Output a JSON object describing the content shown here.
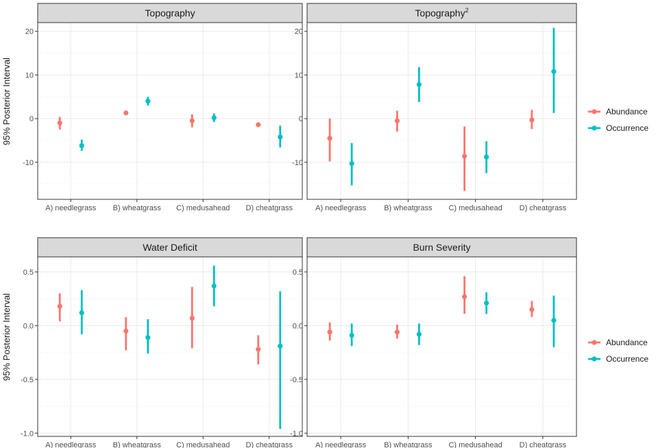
{
  "colors": {
    "abundance": "#f8766d",
    "occurrence": "#00bfc4"
  },
  "legend": {
    "items": [
      "Abundance",
      "Occurrence"
    ]
  },
  "chart_data": [
    {
      "type": "pointrange",
      "title": "Topography",
      "title_sup": "",
      "ylabel": "95% Posterior Interval",
      "ylim": [
        -18.5,
        22
      ],
      "yticks": [
        -10,
        0,
        10,
        20
      ],
      "ytick_labels": [
        "-10",
        "0",
        "10",
        "20"
      ],
      "categories": [
        "A) needlegrass",
        "B) wheatgrass",
        "C) medusahead",
        "D) cheatgrass"
      ],
      "series": [
        {
          "name": "Abundance",
          "mid": [
            -1.0,
            1.3,
            -0.5,
            -1.4
          ],
          "low": [
            -2.5,
            0.8,
            -2.0,
            -1.6
          ],
          "high": [
            0.4,
            1.8,
            1.0,
            -1.2
          ]
        },
        {
          "name": "Occurrence",
          "mid": [
            -6.2,
            4.0,
            0.2,
            -4.2
          ],
          "low": [
            -7.4,
            3.0,
            -0.8,
            -6.6
          ],
          "high": [
            -4.8,
            5.0,
            1.2,
            -1.6
          ]
        }
      ]
    },
    {
      "type": "pointrange",
      "title": "Topography",
      "title_sup": "2",
      "ylabel": "",
      "ylim": [
        -18.5,
        22
      ],
      "yticks": [
        -10,
        0,
        10,
        20
      ],
      "ytick_labels": [
        "-10",
        "0",
        "10",
        "20"
      ],
      "categories": [
        "A) needlegrass",
        "B) wheatgrass",
        "C) medusahead",
        "D) cheatgrass"
      ],
      "series": [
        {
          "name": "Abundance",
          "mid": [
            -4.5,
            -0.5,
            -8.6,
            -0.3
          ],
          "low": [
            -9.8,
            -3.0,
            -16.6,
            -2.4
          ],
          "high": [
            0.0,
            1.8,
            -1.8,
            2.0
          ]
        },
        {
          "name": "Occurrence",
          "mid": [
            -10.3,
            7.8,
            -8.8,
            10.8
          ],
          "low": [
            -15.3,
            3.8,
            -12.5,
            1.3
          ],
          "high": [
            -5.6,
            11.8,
            -5.2,
            20.8
          ]
        }
      ]
    },
    {
      "type": "pointrange",
      "title": "Water Deficit",
      "title_sup": "",
      "ylabel": "95% Posterior Interval",
      "ylim": [
        -1.03,
        0.64
      ],
      "yticks": [
        -1.0,
        -0.5,
        0.0,
        0.5
      ],
      "ytick_labels": [
        "-1.0",
        "-0.5",
        "0.0",
        "0.5"
      ],
      "categories": [
        "A) needlegrass",
        "B) wheatgrass",
        "C) medusahead",
        "D) cheatgrass"
      ],
      "series": [
        {
          "name": "Abundance",
          "mid": [
            0.18,
            -0.05,
            0.07,
            -0.22
          ],
          "low": [
            0.04,
            -0.23,
            -0.21,
            -0.36
          ],
          "high": [
            0.3,
            0.08,
            0.36,
            -0.09
          ]
        },
        {
          "name": "Occurrence",
          "mid": [
            0.12,
            -0.11,
            0.37,
            -0.19
          ],
          "low": [
            -0.08,
            -0.26,
            0.18,
            -0.96
          ],
          "high": [
            0.33,
            0.06,
            0.56,
            0.32
          ]
        }
      ]
    },
    {
      "type": "pointrange",
      "title": "Burn Severity",
      "title_sup": "",
      "ylabel": "",
      "ylim": [
        -1.03,
        0.64
      ],
      "yticks": [
        -1.0,
        -0.5,
        0.0,
        0.5
      ],
      "ytick_labels": [
        "-1.0",
        "-0.5",
        "0.0",
        "0.5"
      ],
      "categories": [
        "A) needlegrass",
        "B) wheatgrass",
        "C) medusahead",
        "D) cheatgrass"
      ],
      "series": [
        {
          "name": "Abundance",
          "mid": [
            -0.06,
            -0.06,
            0.27,
            0.15
          ],
          "low": [
            -0.14,
            -0.12,
            0.11,
            0.08
          ],
          "high": [
            0.03,
            0.01,
            0.46,
            0.23
          ]
        },
        {
          "name": "Occurrence",
          "mid": [
            -0.09,
            -0.08,
            0.21,
            0.05
          ],
          "low": [
            -0.19,
            -0.18,
            0.11,
            -0.2
          ],
          "high": [
            0.02,
            0.02,
            0.31,
            0.28
          ]
        }
      ]
    }
  ]
}
